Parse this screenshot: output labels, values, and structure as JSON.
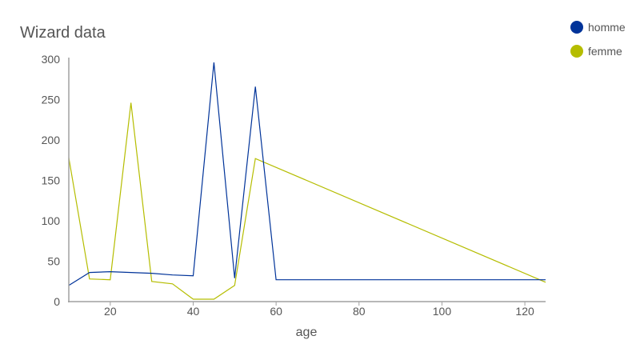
{
  "chart_data": {
    "type": "line",
    "title": "Wizard data",
    "xlabel": "age",
    "ylabel": "",
    "xlim": [
      10,
      125
    ],
    "ylim": [
      0,
      300
    ],
    "x_ticks": [
      20,
      40,
      60,
      80,
      100,
      120
    ],
    "y_ticks": [
      0,
      50,
      100,
      150,
      200,
      250,
      300
    ],
    "grid": false,
    "legend_position": "top-right",
    "series": [
      {
        "name": "homme",
        "color": "#003399",
        "points": [
          [
            10,
            20
          ],
          [
            15,
            36
          ],
          [
            20,
            37
          ],
          [
            25,
            36
          ],
          [
            30,
            35
          ],
          [
            35,
            33
          ],
          [
            40,
            32
          ],
          [
            45,
            296
          ],
          [
            50,
            29
          ],
          [
            55,
            266
          ],
          [
            60,
            27
          ],
          [
            125,
            27
          ]
        ]
      },
      {
        "name": "femme",
        "color": "#b5bd00",
        "points": [
          [
            10,
            178
          ],
          [
            15,
            28
          ],
          [
            20,
            27
          ],
          [
            25,
            246
          ],
          [
            30,
            25
          ],
          [
            35,
            22
          ],
          [
            40,
            3
          ],
          [
            45,
            3
          ],
          [
            50,
            20
          ],
          [
            55,
            177
          ],
          [
            125,
            24
          ]
        ]
      }
    ]
  }
}
